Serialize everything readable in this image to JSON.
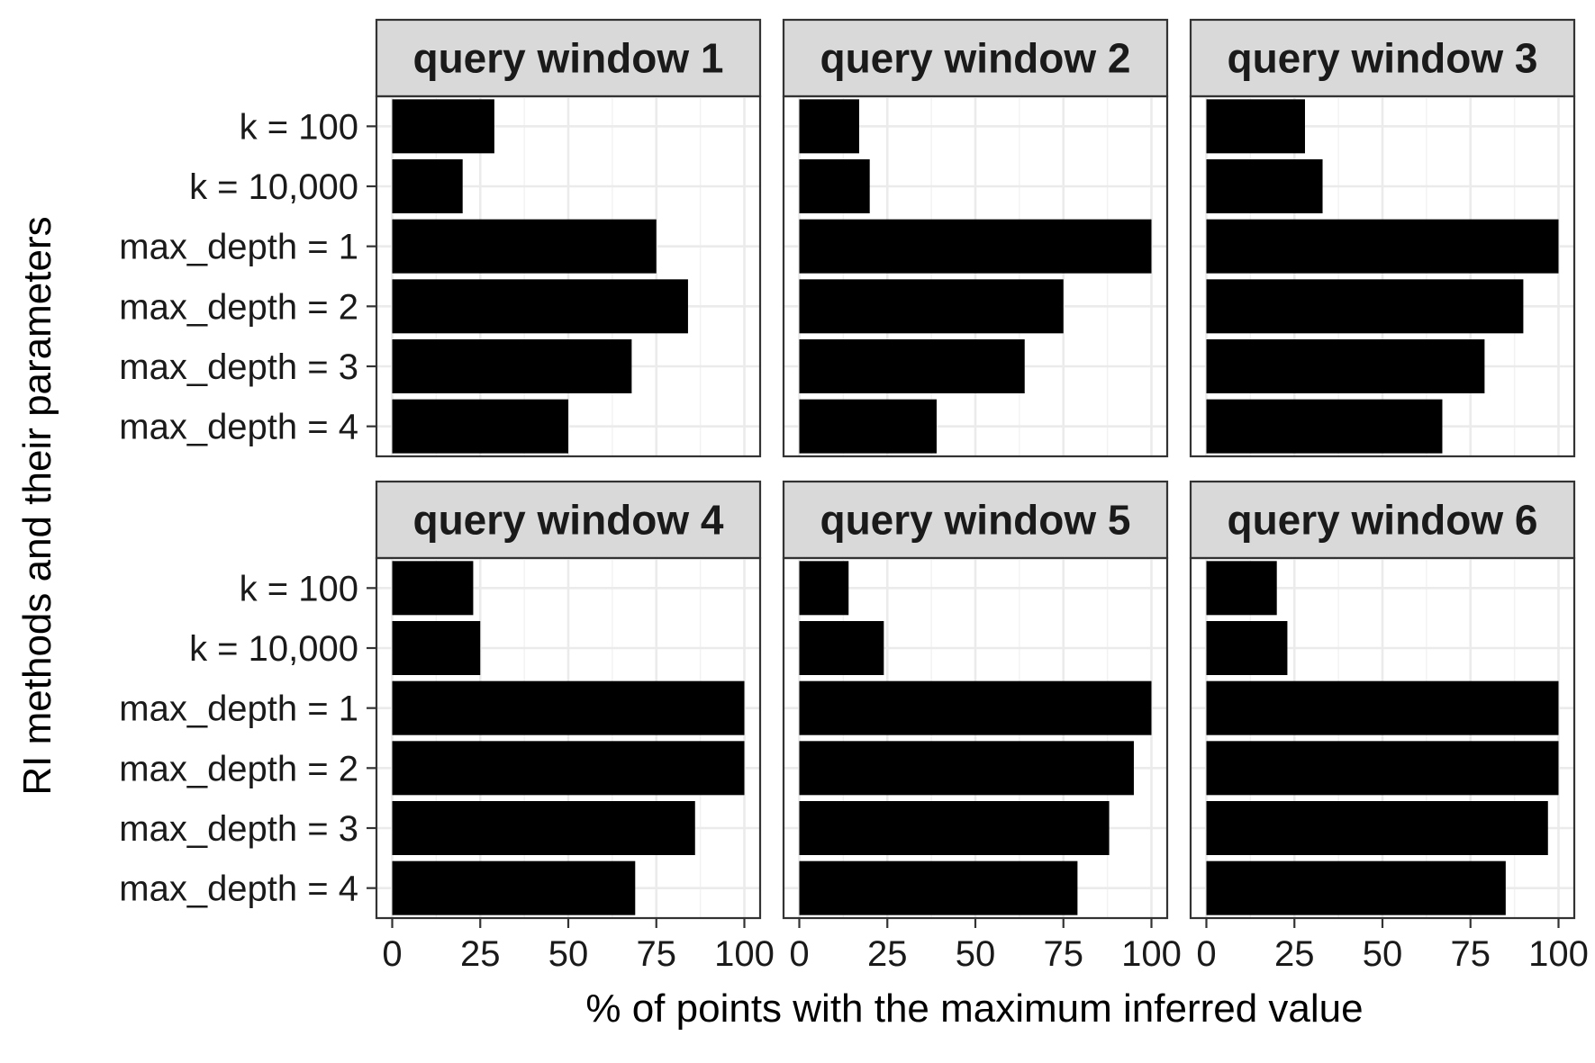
{
  "chart_data": {
    "type": "bar",
    "orientation": "horizontal",
    "facet_layout": "2 rows x 3 columns",
    "xlabel": "% of points with the maximum inferred value",
    "ylabel": "RI methods and their parameters",
    "xlim": [
      0,
      100
    ],
    "xticks": [
      "0",
      "25",
      "50",
      "75",
      "100"
    ],
    "categories": [
      "k = 100",
      "k = 10,000",
      "max_depth = 1",
      "max_depth = 2",
      "max_depth = 3",
      "max_depth = 4"
    ],
    "bar_color": "#000000",
    "grid": true,
    "panels": [
      {
        "title": "query window 1",
        "values": [
          29,
          20,
          75,
          84,
          68,
          50
        ]
      },
      {
        "title": "query window 2",
        "values": [
          17,
          20,
          100,
          75,
          64,
          39
        ]
      },
      {
        "title": "query window 3",
        "values": [
          28,
          33,
          100,
          90,
          79,
          67
        ]
      },
      {
        "title": "query window 4",
        "values": [
          23,
          25,
          100,
          100,
          86,
          69
        ]
      },
      {
        "title": "query window 5",
        "values": [
          14,
          24,
          100,
          95,
          88,
          79
        ]
      },
      {
        "title": "query window 6",
        "values": [
          20,
          23,
          100,
          100,
          97,
          85
        ]
      }
    ]
  }
}
